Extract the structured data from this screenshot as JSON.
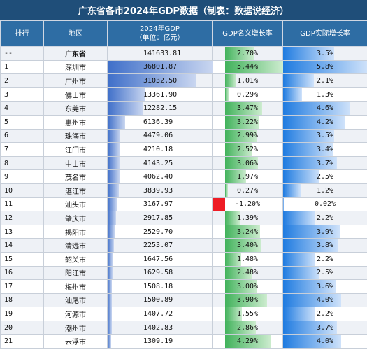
{
  "title": "广东省各市2024年GDP数据（制表：数据说经济）",
  "headers": {
    "rank": "排行",
    "region": "地区",
    "gdp_line1": "2024年GDP",
    "gdp_line2": "（单位：亿元）",
    "nominal": "GDP名义增长率",
    "real": "GDP实际增长率"
  },
  "colors": {
    "title_bg": "#1f4e79",
    "header_bg": "#2e6da4",
    "gdp_bar": "#3f6fc9",
    "nominal_bar": "#41b25b",
    "negative_bar": "#ee1c25",
    "real_bar": "#1f7be0"
  },
  "rows": [
    {
      "rank": "--",
      "region": "广东省",
      "gdp": "141633.81",
      "nominal": "2.70%",
      "real": "3.5%"
    },
    {
      "rank": "1",
      "region": "深圳市",
      "gdp": "36801.87",
      "nominal": "5.44%",
      "real": "5.8%"
    },
    {
      "rank": "2",
      "region": "广州市",
      "gdp": "31032.50",
      "nominal": "1.01%",
      "real": "2.1%"
    },
    {
      "rank": "3",
      "region": "佛山市",
      "gdp": "13361.90",
      "nominal": "0.29%",
      "real": "1.3%"
    },
    {
      "rank": "4",
      "region": "东莞市",
      "gdp": "12282.15",
      "nominal": "3.47%",
      "real": "4.6%"
    },
    {
      "rank": "5",
      "region": "惠州市",
      "gdp": "6136.39",
      "nominal": "3.22%",
      "real": "4.2%"
    },
    {
      "rank": "6",
      "region": "珠海市",
      "gdp": "4479.06",
      "nominal": "2.99%",
      "real": "3.5%"
    },
    {
      "rank": "7",
      "region": "江门市",
      "gdp": "4210.18",
      "nominal": "2.52%",
      "real": "3.4%"
    },
    {
      "rank": "8",
      "region": "中山市",
      "gdp": "4143.25",
      "nominal": "3.06%",
      "real": "3.7%"
    },
    {
      "rank": "9",
      "region": "茂名市",
      "gdp": "4062.40",
      "nominal": "1.97%",
      "real": "2.5%"
    },
    {
      "rank": "10",
      "region": "湛江市",
      "gdp": "3839.93",
      "nominal": "0.27%",
      "real": "1.2%"
    },
    {
      "rank": "11",
      "region": "汕头市",
      "gdp": "3167.97",
      "nominal": "-1.20%",
      "real": "0.02%"
    },
    {
      "rank": "12",
      "region": "肇庆市",
      "gdp": "2917.85",
      "nominal": "1.39%",
      "real": "2.2%"
    },
    {
      "rank": "13",
      "region": "揭阳市",
      "gdp": "2529.70",
      "nominal": "3.24%",
      "real": "3.9%"
    },
    {
      "rank": "14",
      "region": "清远市",
      "gdp": "2253.07",
      "nominal": "3.40%",
      "real": "3.8%"
    },
    {
      "rank": "15",
      "region": "韶关市",
      "gdp": "1647.56",
      "nominal": "1.48%",
      "real": "2.2%"
    },
    {
      "rank": "16",
      "region": "阳江市",
      "gdp": "1629.58",
      "nominal": "2.48%",
      "real": "2.5%"
    },
    {
      "rank": "17",
      "region": "梅州市",
      "gdp": "1508.18",
      "nominal": "3.00%",
      "real": "3.6%"
    },
    {
      "rank": "18",
      "region": "汕尾市",
      "gdp": "1500.89",
      "nominal": "3.90%",
      "real": "4.0%"
    },
    {
      "rank": "19",
      "region": "河源市",
      "gdp": "1407.72",
      "nominal": "1.55%",
      "real": "2.2%"
    },
    {
      "rank": "20",
      "region": "潮州市",
      "gdp": "1402.83",
      "nominal": "2.86%",
      "real": "3.7%"
    },
    {
      "rank": "21",
      "region": "云浮市",
      "gdp": "1309.19",
      "nominal": "4.29%",
      "real": "4.0%"
    }
  ]
}
